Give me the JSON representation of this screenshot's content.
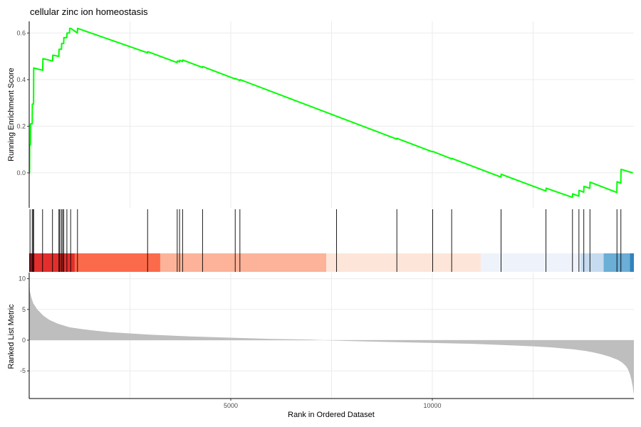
{
  "chart_data": [
    {
      "type": "line",
      "panel": "enrichment",
      "title": "cellular zinc ion homeostasis",
      "xlabel": "",
      "ylabel": "Running Enrichment Score",
      "xlim": [
        0,
        15000
      ],
      "ylim": [
        -0.15,
        0.65
      ],
      "yticks": [
        0.0,
        0.2,
        0.4,
        0.6
      ],
      "ytick_labels": [
        "0.0",
        "0.2",
        "0.4",
        "0.6"
      ],
      "grid": true,
      "line_color": "#00ff00",
      "series": [
        {
          "x": [
            0,
            8,
            11,
            30,
            33,
            75,
            78,
            108,
            112,
            335,
            340,
            580,
            585,
            735,
            740,
            800,
            805,
            855,
            860,
            932,
            938,
            1000,
            1005,
            1025,
            1030,
            1195,
            1200,
            2935,
            2940,
            3670,
            3675,
            3728,
            3733,
            3802,
            3807,
            4298,
            4303,
            5108,
            5113,
            5225,
            5230,
            9118,
            9123,
            10005,
            10010,
            10478,
            10483,
            11703,
            11708,
            12818,
            12823,
            13475,
            13480,
            13635,
            13640,
            13756,
            13761,
            13908,
            13913,
            14578,
            14583,
            14676,
            14681,
            14974
          ],
          "y": [
            0.0,
            0.0,
            0.12,
            0.12,
            0.21,
            0.21,
            0.295,
            0.295,
            0.45,
            0.44,
            0.49,
            0.48,
            0.505,
            0.5,
            0.53,
            0.53,
            0.555,
            0.555,
            0.58,
            0.58,
            0.6,
            0.6,
            0.62,
            0.62,
            0.62,
            0.6,
            0.62,
            0.515,
            0.52,
            0.473,
            0.48,
            0.476,
            0.483,
            0.478,
            0.484,
            0.452,
            0.456,
            0.403,
            0.405,
            0.396,
            0.4,
            0.145,
            0.148,
            0.09,
            0.092,
            0.06,
            0.062,
            -0.018,
            -0.006,
            -0.078,
            -0.066,
            -0.105,
            -0.09,
            -0.1,
            -0.075,
            -0.083,
            -0.058,
            -0.066,
            -0.04,
            -0.084,
            -0.038,
            -0.044,
            0.015,
            0.0
          ]
        }
      ]
    },
    {
      "type": "rug",
      "panel": "hits",
      "xlim": [
        0,
        15000
      ],
      "hits": [
        20,
        75,
        100,
        110,
        332,
        578,
        738,
        758,
        798,
        828,
        858,
        935,
        1028,
        1198,
        2937,
        3672,
        3730,
        3805,
        4300,
        5110,
        5227,
        7625,
        9120,
        10008,
        10480,
        11705,
        12820,
        13477,
        13637,
        13758,
        13910,
        14580,
        14678
      ],
      "color_bands": [
        {
          "x0": 0,
          "x1": 30,
          "color": "#67000d"
        },
        {
          "x0": 30,
          "x1": 70,
          "color": "#a50f15"
        },
        {
          "x0": 70,
          "x1": 140,
          "color": "#cb181d"
        },
        {
          "x0": 140,
          "x1": 1130,
          "color": "#e22f2c"
        },
        {
          "x0": 1130,
          "x1": 3250,
          "color": "#fb6a4a"
        },
        {
          "x0": 3250,
          "x1": 7370,
          "color": "#fcb399"
        },
        {
          "x0": 7370,
          "x1": 11200,
          "color": "#fde5d9"
        },
        {
          "x0": 11200,
          "x1": 13680,
          "color": "#eef3fb"
        },
        {
          "x0": 13680,
          "x1": 14250,
          "color": "#c6dbef"
        },
        {
          "x0": 14250,
          "x1": 14900,
          "color": "#6baed6"
        },
        {
          "x0": 14900,
          "x1": 15000,
          "color": "#3182bd"
        }
      ]
    },
    {
      "type": "area",
      "panel": "ranked_metric",
      "xlabel": "Rank in Ordered Dataset",
      "ylabel": "Ranked List Metric",
      "xlim": [
        0,
        15000
      ],
      "ylim": [
        -9.5,
        11
      ],
      "xticks": [
        5000,
        10000
      ],
      "xtick_labels": [
        "5000",
        "10000"
      ],
      "yticks": [
        -5,
        0,
        5,
        10
      ],
      "ytick_labels": [
        "-5",
        "0",
        "5",
        "10"
      ],
      "grid": true,
      "fill_color": "#bebebe",
      "series": [
        {
          "x": [
            0,
            15,
            50,
            100,
            200,
            350,
            500,
            700,
            1000,
            1300,
            1700,
            2000,
            2500,
            3000,
            3500,
            4000,
            5000,
            6000,
            7000,
            7300,
            7500,
            8000,
            9000,
            10000,
            11000,
            12000,
            12500,
            13000,
            13500,
            13800,
            14000,
            14200,
            14400,
            14600,
            14700,
            14800,
            14850,
            14900,
            14940,
            14970,
            14990,
            15000
          ],
          "y": [
            10.5,
            8.0,
            7.0,
            6.0,
            5.0,
            4.0,
            3.3,
            2.7,
            2.1,
            1.8,
            1.5,
            1.3,
            1.1,
            0.9,
            0.75,
            0.6,
            0.4,
            0.2,
            0.08,
            0.0,
            -0.05,
            -0.15,
            -0.3,
            -0.45,
            -0.6,
            -0.85,
            -1.0,
            -1.2,
            -1.5,
            -1.75,
            -2.0,
            -2.3,
            -2.7,
            -3.2,
            -3.6,
            -4.2,
            -4.7,
            -5.5,
            -6.5,
            -7.5,
            -8.5,
            -8.8
          ]
        }
      ]
    }
  ]
}
